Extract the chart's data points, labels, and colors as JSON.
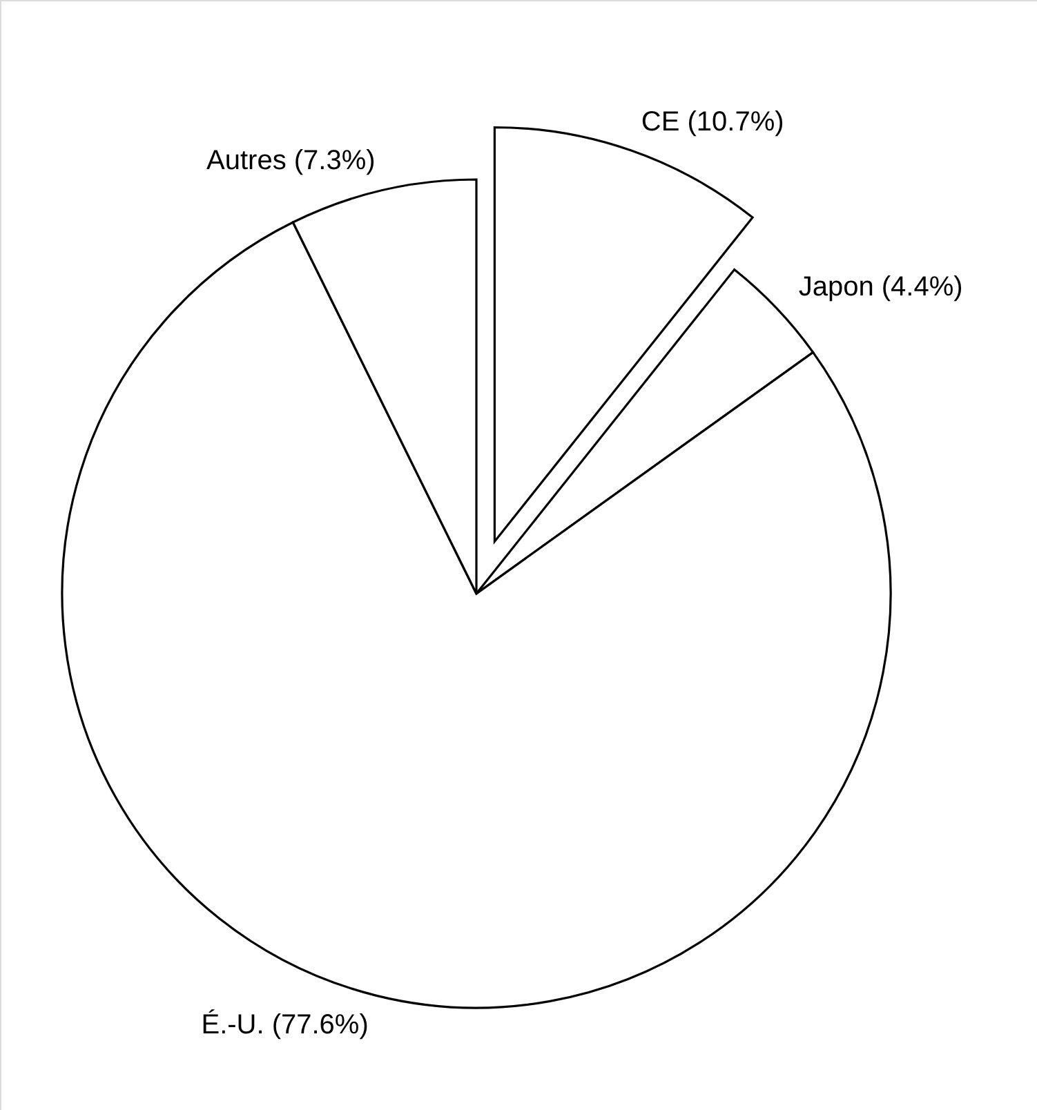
{
  "chart_data": {
    "type": "pie",
    "categories": [
      "CE (10.7%)",
      "Japon (4.4%)",
      "É.-U. (77.6%)",
      "Autres (7.3%)"
    ],
    "values": [
      10.7,
      4.4,
      77.6,
      7.3
    ],
    "colors": [
      "#ffffff",
      "#ffffff",
      "#ffffff",
      "#ffffff"
    ]
  }
}
